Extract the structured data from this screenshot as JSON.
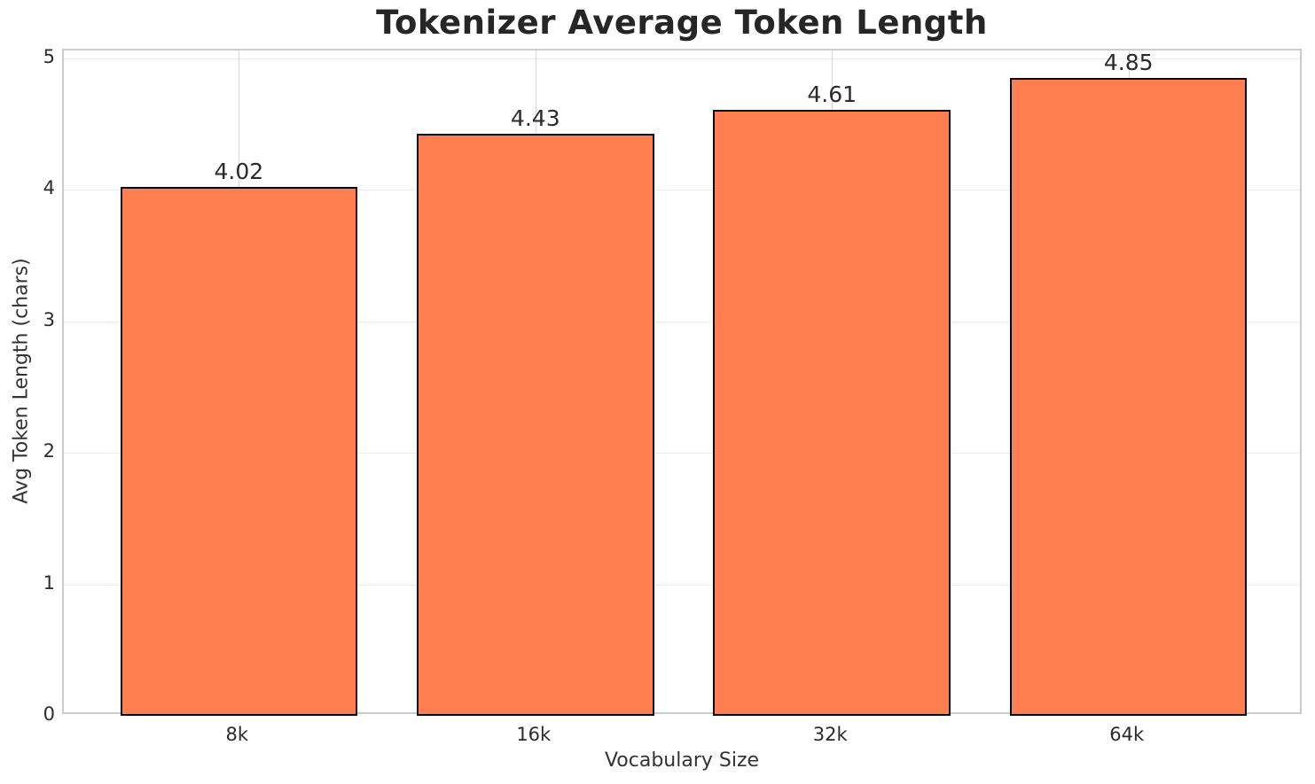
{
  "chart_data": {
    "type": "bar",
    "title": "Tokenizer Average Token Length",
    "xlabel": "Vocabulary Size",
    "ylabel": "Avg Token Length (chars)",
    "categories": [
      "8k",
      "16k",
      "32k",
      "64k"
    ],
    "values": [
      4.02,
      4.43,
      4.61,
      4.85
    ],
    "bar_labels": [
      "4.02",
      "4.43",
      "4.61",
      "4.85"
    ],
    "yticks": [
      0,
      1,
      2,
      3,
      4,
      5
    ],
    "ylim": [
      0,
      5.06
    ],
    "xlim": [
      -0.59,
      3.59
    ],
    "bar_width": 0.8,
    "grid": "both",
    "legend": "none",
    "colors": {
      "bar_fill": "#FF7F50",
      "bar_edge": "#0A0A0A",
      "title_text": "#262626",
      "tick_text": "#2B2B2B",
      "grid_horizontal": "#ECECEC",
      "grid_vertical": "#D8D8D8",
      "spine": "#CCCCCC",
      "background": "#FFFFFF"
    }
  }
}
